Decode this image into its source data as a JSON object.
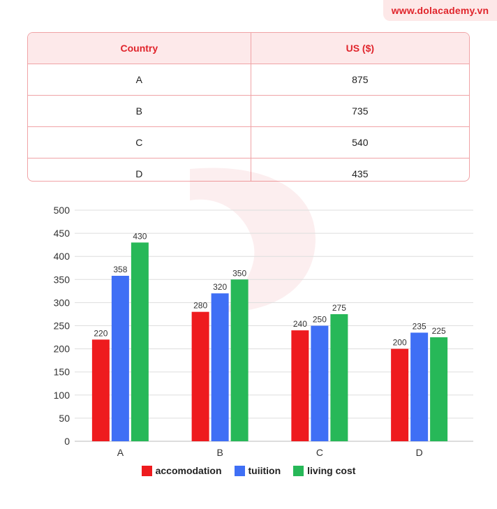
{
  "brand": {
    "text": "www.dolacademy.vn",
    "color": "#e0242b"
  },
  "table": {
    "headers": [
      "Country",
      "US ($)"
    ],
    "rows": [
      [
        "A",
        "875"
      ],
      [
        "B",
        "735"
      ],
      [
        "C",
        "540"
      ],
      [
        "D",
        "435"
      ]
    ]
  },
  "chart_data": {
    "type": "bar",
    "categories": [
      "A",
      "B",
      "C",
      "D"
    ],
    "series": [
      {
        "name": "accomodation",
        "values": [
          220,
          280,
          240,
          200
        ],
        "color": "#ee1b1e"
      },
      {
        "name": "tuiition",
        "values": [
          358,
          320,
          250,
          235
        ],
        "color": "#3f6ff5"
      },
      {
        "name": "living cost",
        "values": [
          430,
          350,
          275,
          225
        ],
        "color": "#27b858"
      }
    ],
    "ylim": [
      0,
      500
    ],
    "yticks": [
      "0",
      "50",
      "100",
      "150",
      "200",
      "250",
      "300",
      "350",
      "400",
      "450",
      "500"
    ],
    "grid": true,
    "legend": "bottom"
  }
}
